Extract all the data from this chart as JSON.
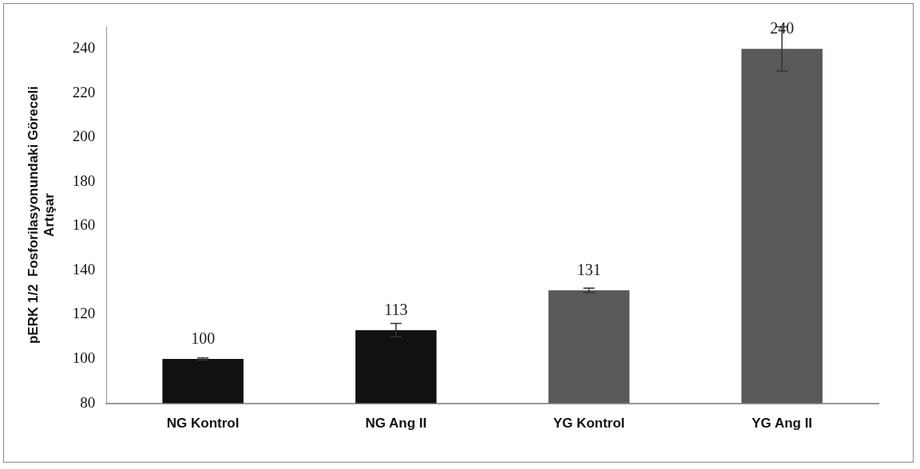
{
  "chart_data": {
    "type": "bar",
    "ylabel": "pERK 1/2  Fosforilasyonundaki Göreceli\nArtışar",
    "categories": [
      "NG Kontrol",
      "NG Ang II",
      "YG Kontrol",
      "YG Ang II"
    ],
    "values": [
      100,
      113,
      131,
      240
    ],
    "colors": [
      "#111111",
      "#111111",
      "#595959",
      "#595959"
    ],
    "errors": [
      0.5,
      3,
      1,
      10
    ],
    "data_labels": true,
    "ylim": [
      80,
      250
    ],
    "yticks": [
      80,
      100,
      120,
      140,
      160,
      180,
      200,
      220,
      240
    ],
    "grid": false,
    "legend": false
  }
}
